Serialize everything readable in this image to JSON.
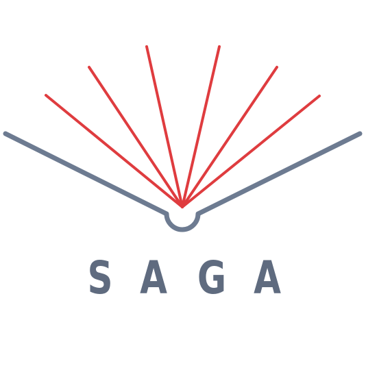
{
  "logo": {
    "wordmark": "SAGA",
    "book_color": "#6d7b91",
    "ray_color": "#df3c3f",
    "text_color": "#5f6b7f",
    "book_icon": "open-book-icon",
    "rays_icon": "light-rays-icon"
  }
}
